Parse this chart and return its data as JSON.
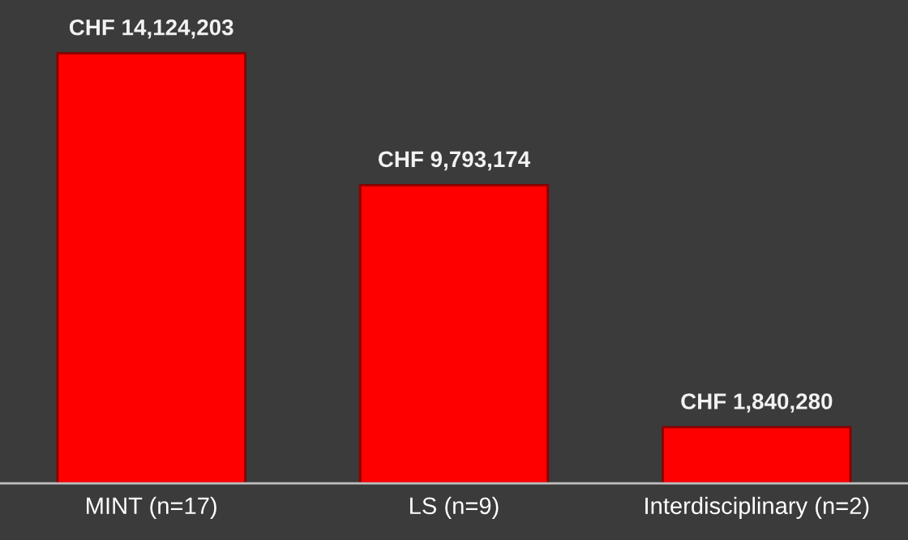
{
  "chart_data": {
    "type": "bar",
    "categories": [
      "MINT (n=17)",
      "LS (n=9)",
      "Interdisciplinary (n=2)"
    ],
    "values": [
      14124203,
      9793174,
      1840280
    ],
    "value_labels": [
      "CHF 14,124,203",
      "CHF 9,793,174",
      "CHF 1,840,280"
    ],
    "color": "#ff0000",
    "grid": false,
    "legend": false
  }
}
